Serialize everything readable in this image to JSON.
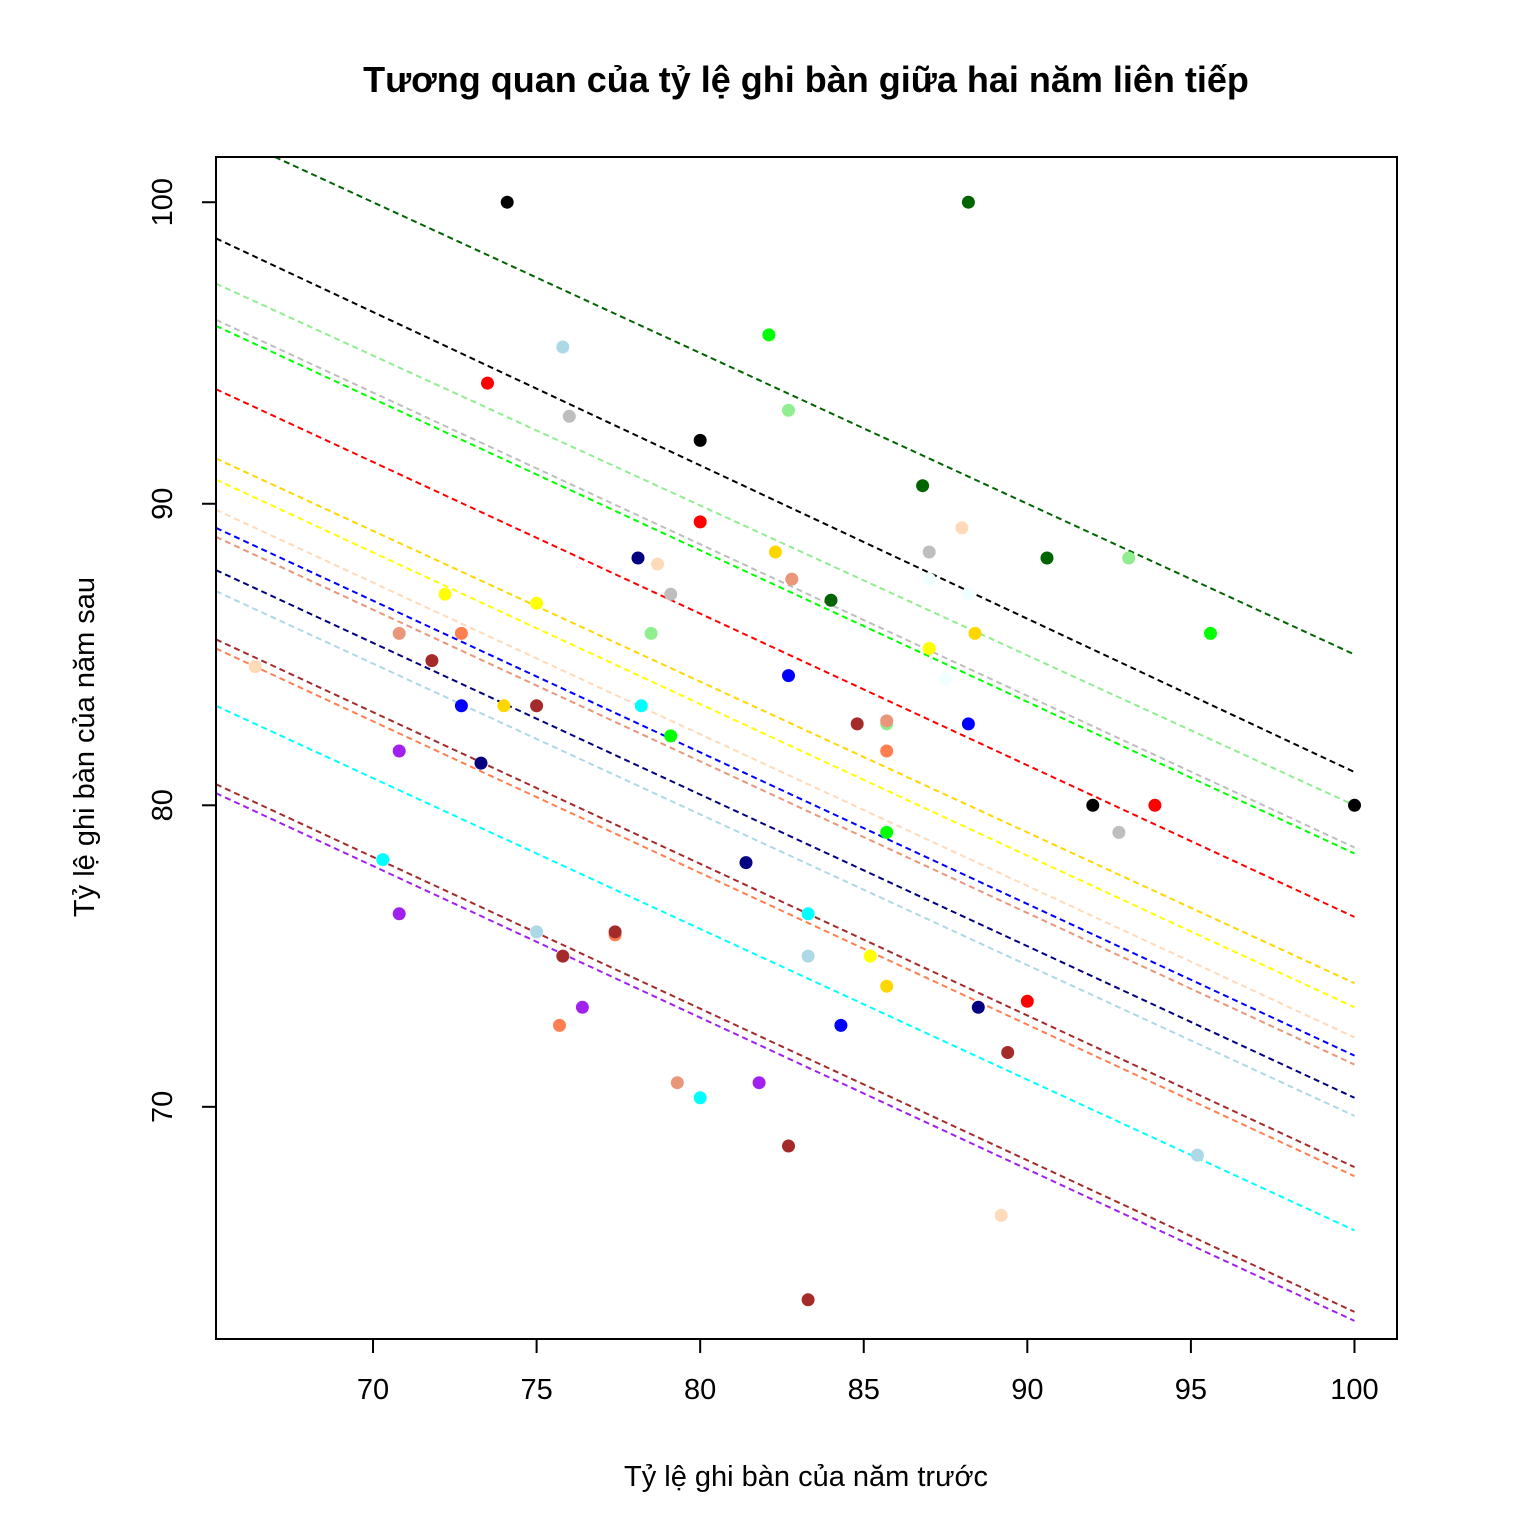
{
  "chart_data": {
    "type": "scatter",
    "title": "Tương quan của tỷ lệ ghi bàn giữa hai năm liên tiếp",
    "xlabel": "Tỷ lệ ghi bàn của năm trước",
    "ylabel": "Tỷ lệ ghi bàn của năm sau",
    "xlim": [
      65.2,
      101.3
    ],
    "ylim": [
      62.3,
      101.5
    ],
    "xticks": [
      70,
      75,
      80,
      85,
      90,
      95,
      100
    ],
    "yticks": [
      70,
      80,
      90,
      100
    ],
    "grid": false,
    "legend": "none",
    "points": [
      {
        "x": 74.1,
        "y": 100.0,
        "color": "#000000"
      },
      {
        "x": 80.0,
        "y": 92.1,
        "color": "#000000"
      },
      {
        "x": 92.0,
        "y": 80.0,
        "color": "#000000"
      },
      {
        "x": 100.0,
        "y": 80.0,
        "color": "#000000"
      },
      {
        "x": 88.2,
        "y": 100.0,
        "color": "#006400"
      },
      {
        "x": 86.8,
        "y": 90.6,
        "color": "#006400"
      },
      {
        "x": 90.6,
        "y": 88.2,
        "color": "#006400"
      },
      {
        "x": 84.0,
        "y": 86.8,
        "color": "#006400"
      },
      {
        "x": 82.1,
        "y": 95.6,
        "color": "#00ff00"
      },
      {
        "x": 95.6,
        "y": 85.7,
        "color": "#00ff00"
      },
      {
        "x": 79.1,
        "y": 82.3,
        "color": "#00ff00"
      },
      {
        "x": 85.7,
        "y": 79.1,
        "color": "#00ff00"
      },
      {
        "x": 82.7,
        "y": 93.1,
        "color": "#90ee90"
      },
      {
        "x": 93.1,
        "y": 88.2,
        "color": "#90ee90"
      },
      {
        "x": 78.5,
        "y": 85.7,
        "color": "#90ee90"
      },
      {
        "x": 85.7,
        "y": 82.7,
        "color": "#90ee90"
      },
      {
        "x": 75.8,
        "y": 95.2,
        "color": "#add8e6"
      },
      {
        "x": 75.0,
        "y": 75.8,
        "color": "#add8e6"
      },
      {
        "x": 83.3,
        "y": 75.0,
        "color": "#add8e6"
      },
      {
        "x": 95.2,
        "y": 68.4,
        "color": "#add8e6"
      },
      {
        "x": 73.5,
        "y": 94.0,
        "color": "#ff0000"
      },
      {
        "x": 80.0,
        "y": 89.4,
        "color": "#ff0000"
      },
      {
        "x": 93.9,
        "y": 80.0,
        "color": "#ff0000"
      },
      {
        "x": 90.0,
        "y": 73.5,
        "color": "#ff0000"
      },
      {
        "x": 76.0,
        "y": 92.9,
        "color": "#bebebe"
      },
      {
        "x": 87.0,
        "y": 88.4,
        "color": "#bebebe"
      },
      {
        "x": 79.1,
        "y": 87.0,
        "color": "#bebebe"
      },
      {
        "x": 92.8,
        "y": 79.1,
        "color": "#bebebe"
      },
      {
        "x": 78.1,
        "y": 88.2,
        "color": "#000080"
      },
      {
        "x": 73.3,
        "y": 81.4,
        "color": "#000080"
      },
      {
        "x": 81.4,
        "y": 78.1,
        "color": "#000080"
      },
      {
        "x": 88.5,
        "y": 73.3,
        "color": "#000080"
      },
      {
        "x": 82.7,
        "y": 84.3,
        "color": "#0000ff"
      },
      {
        "x": 72.7,
        "y": 83.3,
        "color": "#0000ff"
      },
      {
        "x": 88.2,
        "y": 82.7,
        "color": "#0000ff"
      },
      {
        "x": 84.3,
        "y": 72.7,
        "color": "#0000ff"
      },
      {
        "x": 88.0,
        "y": 89.2,
        "color": "#ffdab9"
      },
      {
        "x": 78.7,
        "y": 88.0,
        "color": "#ffdab9"
      },
      {
        "x": 66.4,
        "y": 84.6,
        "color": "#ffdab9"
      },
      {
        "x": 89.2,
        "y": 66.4,
        "color": "#ffdab9"
      },
      {
        "x": 82.3,
        "y": 88.4,
        "color": "#ffd700"
      },
      {
        "x": 88.4,
        "y": 85.7,
        "color": "#ffd700"
      },
      {
        "x": 74.0,
        "y": 83.3,
        "color": "#ffd700"
      },
      {
        "x": 85.7,
        "y": 74.0,
        "color": "#ffd700"
      },
      {
        "x": 72.2,
        "y": 87.0,
        "color": "#ffff00"
      },
      {
        "x": 75.0,
        "y": 86.7,
        "color": "#ffff00"
      },
      {
        "x": 87.0,
        "y": 85.2,
        "color": "#ffff00"
      },
      {
        "x": 85.2,
        "y": 75.0,
        "color": "#ffff00"
      },
      {
        "x": 82.8,
        "y": 87.5,
        "color": "#e9967a"
      },
      {
        "x": 70.8,
        "y": 85.7,
        "color": "#e9967a"
      },
      {
        "x": 85.7,
        "y": 82.8,
        "color": "#e9967a"
      },
      {
        "x": 79.3,
        "y": 70.8,
        "color": "#e9967a"
      },
      {
        "x": 72.7,
        "y": 85.7,
        "color": "#ff7f50"
      },
      {
        "x": 85.7,
        "y": 81.8,
        "color": "#ff7f50"
      },
      {
        "x": 77.4,
        "y": 75.7,
        "color": "#ff7f50"
      },
      {
        "x": 75.7,
        "y": 72.7,
        "color": "#ff7f50"
      },
      {
        "x": 71.8,
        "y": 84.8,
        "color": "#a52a2a"
      },
      {
        "x": 75.0,
        "y": 83.3,
        "color": "#a52a2a"
      },
      {
        "x": 84.8,
        "y": 82.7,
        "color": "#a52a2a"
      },
      {
        "x": 77.4,
        "y": 75.8,
        "color": "#a52a2a"
      },
      {
        "x": 75.8,
        "y": 75.0,
        "color": "#a52a2a"
      },
      {
        "x": 89.4,
        "y": 71.8,
        "color": "#a52a2a"
      },
      {
        "x": 82.7,
        "y": 68.7,
        "color": "#a52a2a"
      },
      {
        "x": 83.3,
        "y": 63.6,
        "color": "#a52a2a"
      },
      {
        "x": 78.2,
        "y": 83.3,
        "color": "#00ffff"
      },
      {
        "x": 70.3,
        "y": 78.2,
        "color": "#00ffff"
      },
      {
        "x": 83.3,
        "y": 76.4,
        "color": "#00ffff"
      },
      {
        "x": 80.0,
        "y": 70.3,
        "color": "#00ffff"
      },
      {
        "x": 70.8,
        "y": 81.8,
        "color": "#a020f0"
      },
      {
        "x": 70.8,
        "y": 76.4,
        "color": "#a020f0"
      },
      {
        "x": 76.4,
        "y": 73.3,
        "color": "#a020f0"
      },
      {
        "x": 81.8,
        "y": 70.8,
        "color": "#a020f0"
      },
      {
        "x": 87.5,
        "y": 84.2,
        "color": "#f0ffff"
      },
      {
        "x": 87.0,
        "y": 87.5,
        "color": "#f0ffff"
      },
      {
        "x": 88.2,
        "y": 87.0,
        "color": "#f0ffff"
      }
    ],
    "lines": [
      {
        "color": "#006400",
        "points": [
          [
            67,
            101.5
          ],
          [
            100,
            85.0
          ]
        ]
      },
      {
        "color": "#000000",
        "points": [
          [
            65.2,
            98.8
          ],
          [
            100,
            81.1
          ]
        ]
      },
      {
        "color": "#90ee90",
        "points": [
          [
            65.2,
            97.3
          ],
          [
            100,
            80.0
          ]
        ]
      },
      {
        "color": "#bebebe",
        "points": [
          [
            65.2,
            96.1
          ],
          [
            100,
            78.6
          ]
        ]
      },
      {
        "color": "#00ff00",
        "points": [
          [
            65.2,
            95.9
          ],
          [
            100,
            78.4
          ]
        ]
      },
      {
        "color": "#ff0000",
        "points": [
          [
            65.2,
            93.8
          ],
          [
            100,
            76.3
          ]
        ]
      },
      {
        "color": "#ffd700",
        "points": [
          [
            65.2,
            91.5
          ],
          [
            100,
            74.1
          ]
        ]
      },
      {
        "color": "#ffff00",
        "points": [
          [
            65.2,
            90.8
          ],
          [
            100,
            73.3
          ]
        ]
      },
      {
        "color": "#ffdab9",
        "points": [
          [
            65.2,
            89.8
          ],
          [
            100,
            72.3
          ]
        ]
      },
      {
        "color": "#0000ff",
        "points": [
          [
            65.2,
            89.2
          ],
          [
            100,
            71.7
          ]
        ]
      },
      {
        "color": "#e9967a",
        "points": [
          [
            65.2,
            88.9
          ],
          [
            100,
            71.4
          ]
        ]
      },
      {
        "color": "#000080",
        "points": [
          [
            65.2,
            87.8
          ],
          [
            100,
            70.3
          ]
        ]
      },
      {
        "color": "#add8e6",
        "points": [
          [
            65.2,
            87.1
          ],
          [
            100,
            69.7
          ]
        ]
      },
      {
        "color": "#a52a2a",
        "points": [
          [
            65.2,
            85.5
          ],
          [
            100,
            68.0
          ]
        ]
      },
      {
        "color": "#ff7f50",
        "points": [
          [
            65.2,
            85.2
          ],
          [
            100,
            67.7
          ]
        ]
      },
      {
        "color": "#00ffff",
        "points": [
          [
            65.2,
            83.3
          ],
          [
            100,
            65.9
          ]
        ]
      },
      {
        "color": "#a52a2a",
        "points": [
          [
            65.2,
            80.7
          ],
          [
            100,
            63.2
          ]
        ]
      },
      {
        "color": "#a020f0",
        "points": [
          [
            65.2,
            80.4
          ],
          [
            100,
            62.9
          ]
        ]
      }
    ]
  }
}
